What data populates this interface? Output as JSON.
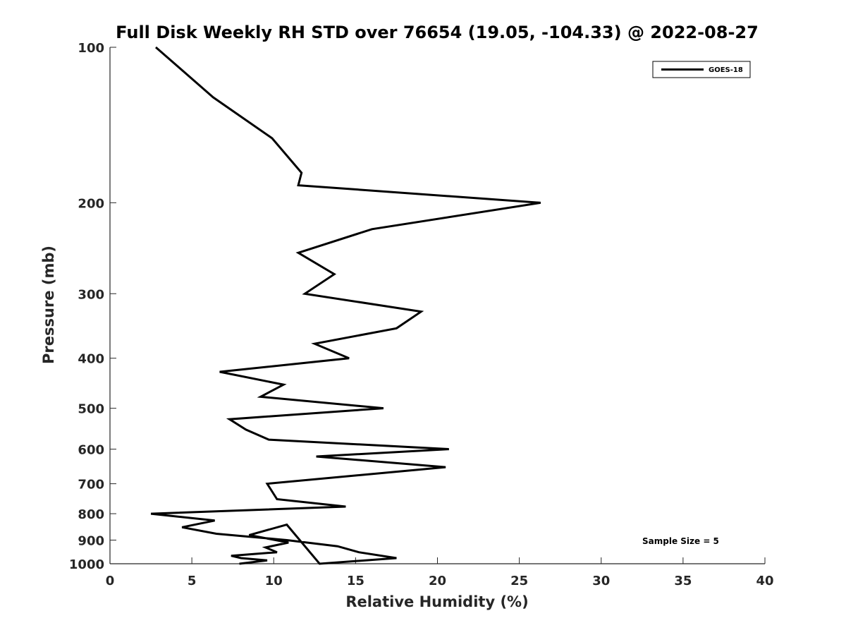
{
  "chart_data": {
    "type": "line",
    "title": "Full Disk Weekly RH STD over 76654 (19.05, -104.33) @ 2022-08-27",
    "xlabel": "Relative Humidity (%)",
    "ylabel": "Pressure (mb)",
    "xlim": [
      0,
      40
    ],
    "ylim": [
      100,
      1000
    ],
    "y_scale": "log",
    "y_reversed": true,
    "x_ticks": [
      "0",
      "5",
      "10",
      "15",
      "20",
      "25",
      "30",
      "35",
      "40"
    ],
    "y_ticks": [
      "100",
      "200",
      "300",
      "400",
      "500",
      "600",
      "700",
      "800",
      "900",
      "1000"
    ],
    "grid": false,
    "legend_position": "top-right",
    "annotation": "Sample Size = 5",
    "series": [
      {
        "name": "GOES-18",
        "color": "#000000",
        "rh": [
          2.8,
          6.3,
          9.9,
          11.7,
          11.5,
          26.3,
          16.0,
          11.5,
          13.7,
          11.9,
          19.0,
          17.5,
          12.5,
          14.6,
          6.7,
          10.6,
          9.2,
          16.7,
          7.3,
          8.3,
          9.7,
          20.7,
          12.6,
          20.5,
          9.6,
          10.2,
          14.4,
          2.5,
          6.4,
          4.4,
          6.5,
          10.8,
          13.9,
          15.2,
          17.5,
          12.8,
          10.8,
          8.5,
          10.9,
          9.5,
          10.2,
          7.4,
          8.0,
          9.6,
          7.9
        ],
        "pressure": [
          100,
          125,
          150,
          175,
          185,
          200,
          225,
          250,
          275,
          300,
          325,
          350,
          375,
          400,
          425,
          450,
          475,
          500,
          525,
          550,
          575,
          600,
          620,
          650,
          700,
          750,
          775,
          800,
          825,
          850,
          875,
          900,
          925,
          950,
          975,
          1000,
          840,
          880,
          910,
          930,
          950,
          965,
          975,
          985,
          1000
        ]
      }
    ]
  }
}
